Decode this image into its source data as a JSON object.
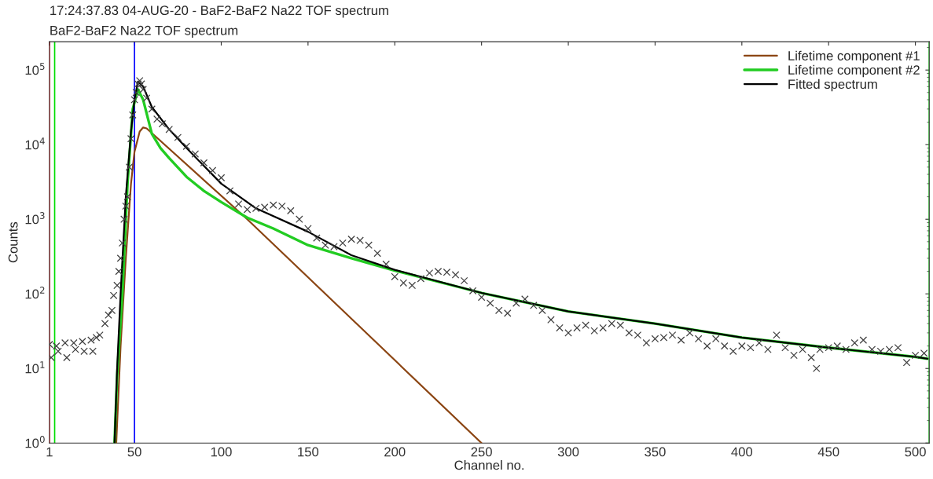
{
  "chart_data": {
    "type": "scatter",
    "title": "17:24:37.83 04-AUG-20 - BaF2-BaF2 Na22 TOF spectrum",
    "subtitle": "BaF2-BaF2 Na22 TOF spectrum",
    "xlabel": "Channel no.",
    "ylabel": "Counts",
    "log": "y",
    "xlim": [
      1,
      508
    ],
    "ylim": [
      1,
      240000
    ],
    "xticks": [
      1,
      50,
      100,
      150,
      200,
      250,
      300,
      350,
      400,
      450,
      500
    ],
    "yticks": [
      {
        "value": 1,
        "label": "10$^{0}$"
      },
      {
        "value": 10,
        "label": "10$^{1}$"
      },
      {
        "value": 100,
        "label": "10$^{2}$"
      },
      {
        "value": 1000,
        "label": "10$^{3}$"
      },
      {
        "value": 10000,
        "label": "10$^{4}$"
      },
      {
        "value": 100000,
        "label": "10$^{5}$"
      }
    ],
    "grid": false,
    "legend": "top right",
    "ref_lines": [
      {
        "axis": "x",
        "value": 1,
        "color": "#ff0000"
      },
      {
        "axis": "x",
        "value": 4,
        "color": "#00dd00"
      },
      {
        "axis": "x",
        "value": 50,
        "color": "#0000ff"
      },
      {
        "axis": "x",
        "value": 508,
        "color": "#00dd00"
      }
    ],
    "series": [
      {
        "marker": "cross",
        "color": "#404040",
        "x": [
          1,
          2,
          5,
          6,
          10,
          11,
          15,
          16,
          20,
          21,
          25,
          26,
          28,
          30,
          33,
          35,
          37,
          38,
          40,
          41,
          42,
          43,
          44,
          45,
          46,
          47,
          48,
          49,
          50,
          51,
          52,
          53,
          54,
          55,
          57,
          60,
          63,
          66,
          70,
          75,
          80,
          85,
          90,
          95,
          100,
          105,
          110,
          115,
          120,
          125,
          130,
          135,
          140,
          145,
          150,
          155,
          160,
          165,
          170,
          175,
          180,
          185,
          190,
          195,
          200,
          205,
          210,
          215,
          220,
          225,
          230,
          235,
          240,
          245,
          250,
          255,
          260,
          265,
          270,
          275,
          280,
          285,
          290,
          295,
          300,
          305,
          310,
          315,
          320,
          325,
          330,
          335,
          340,
          345,
          350,
          355,
          360,
          365,
          370,
          375,
          380,
          385,
          390,
          395,
          400,
          405,
          410,
          415,
          420,
          425,
          430,
          435,
          440,
          443,
          445,
          450,
          455,
          460,
          465,
          470,
          475,
          480,
          485,
          490,
          495,
          500,
          505
        ],
        "values": [
          21,
          14,
          20,
          17,
          22,
          14,
          22,
          18,
          23,
          17,
          24,
          17,
          26,
          28,
          40,
          52,
          60,
          95,
          130,
          200,
          300,
          480,
          1000,
          1500,
          2000,
          5000,
          12000,
          25000,
          40000,
          50000,
          65000,
          72000,
          65000,
          55000,
          42000,
          30000,
          22000,
          19000,
          16000,
          12500,
          9500,
          7500,
          5700,
          4500,
          3600,
          2400,
          1600,
          1350,
          1400,
          1450,
          1550,
          1500,
          1300,
          1000,
          750,
          560,
          450,
          430,
          480,
          540,
          520,
          450,
          350,
          250,
          170,
          140,
          130,
          160,
          190,
          200,
          195,
          180,
          150,
          110,
          90,
          75,
          60,
          55,
          75,
          85,
          70,
          60,
          45,
          35,
          30,
          35,
          38,
          32,
          35,
          40,
          38,
          30,
          28,
          22,
          25,
          26,
          28,
          24,
          30,
          25,
          20,
          25,
          20,
          17,
          20,
          19,
          22,
          18,
          28,
          19,
          15,
          18,
          14,
          10,
          18,
          19,
          20,
          18,
          22,
          24,
          18,
          17,
          18,
          19,
          12,
          15,
          16
        ]
      },
      {
        "type": "line",
        "name": "Lifetime component #1",
        "color": "#8b4513",
        "x": [
          39.5,
          42,
          45,
          48,
          50,
          53,
          55,
          57,
          115,
          250
        ],
        "values": [
          1,
          20,
          300,
          3000,
          8000,
          15000,
          17000,
          16500,
          1000,
          1
        ]
      },
      {
        "type": "line",
        "name": "Lifetime component #2",
        "color": "#22cc22",
        "x": [
          38.5,
          40,
          43,
          46,
          49,
          52,
          55,
          60,
          65,
          70,
          80,
          90,
          100,
          115,
          130,
          150,
          175,
          200,
          250,
          300,
          350,
          400,
          450,
          500,
          507
        ],
        "values": [
          1,
          8,
          100,
          3000,
          30000,
          55000,
          40000,
          14000,
          9000,
          6600,
          3700,
          2400,
          1700,
          1050,
          750,
          450,
          300,
          205,
          103,
          58,
          40,
          26,
          19,
          14.3,
          13.5
        ]
      },
      {
        "type": "line",
        "name": "Fitted spectrum",
        "color": "#000000",
        "x": [
          38.5,
          40,
          42,
          45,
          48,
          50,
          52,
          55,
          60,
          70,
          80,
          100,
          120,
          150,
          175,
          200,
          250,
          300,
          350,
          400,
          450,
          500,
          507
        ],
        "values": [
          1,
          10,
          100,
          2000,
          15000,
          40000,
          70000,
          60000,
          32000,
          16000,
          9000,
          3000,
          1400,
          680,
          330,
          210,
          103,
          58,
          40,
          26,
          19,
          14.3,
          13.5
        ]
      }
    ]
  }
}
